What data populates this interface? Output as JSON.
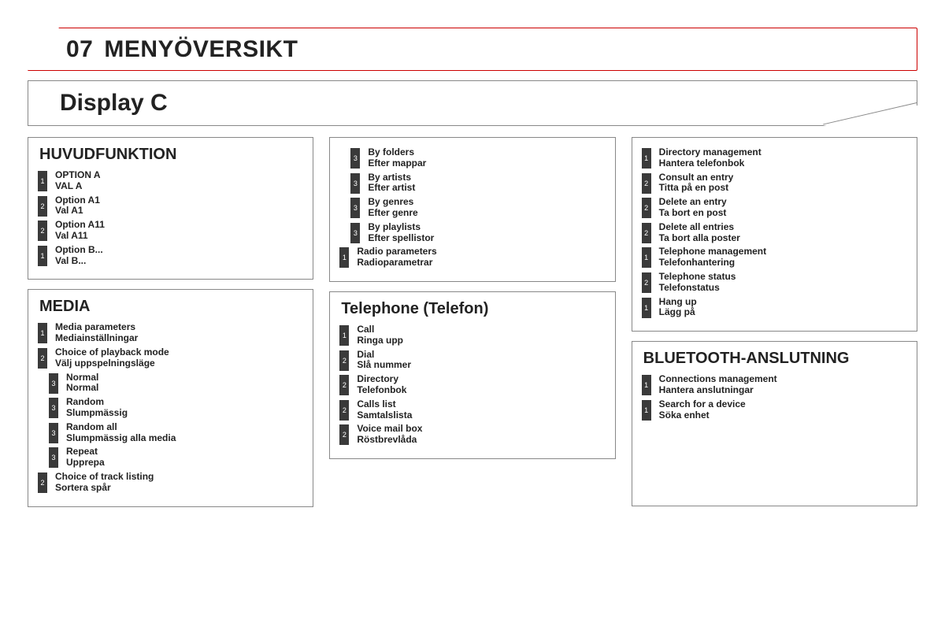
{
  "banner": {
    "num": "07",
    "title": "MENYÖVERSIKT"
  },
  "subtitle": "Display C",
  "colors": {
    "accent": "#c00020",
    "border": "#888888",
    "numbox": "#3a3a3a"
  },
  "columns": [
    {
      "panels": [
        {
          "title": "HUVUDFUNKTION",
          "items": [
            {
              "n": "1",
              "indent": 0,
              "l1": "OPTION A",
              "l2": "VAL A"
            },
            {
              "n": "2",
              "indent": 0,
              "l1": "Option A1",
              "l2": "Val A1"
            },
            {
              "n": "2",
              "indent": 0,
              "l1": "Option A11",
              "l2": "Val A11"
            },
            {
              "n": "1",
              "indent": 0,
              "l1": "Option B...",
              "l2": "Val B..."
            }
          ]
        },
        {
          "title": "MEDIA",
          "items": [
            {
              "n": "1",
              "indent": 0,
              "l1": "Media parameters",
              "l2": "Mediainställningar"
            },
            {
              "n": "2",
              "indent": 0,
              "l1": "Choice of playback mode",
              "l2": "Välj uppspelningsläge"
            },
            {
              "n": "3",
              "indent": 1,
              "l1": "Normal",
              "l2": "Normal"
            },
            {
              "n": "3",
              "indent": 1,
              "l1": "Random",
              "l2": "Slumpmässig"
            },
            {
              "n": "3",
              "indent": 1,
              "l1": "Random all",
              "l2": "Slumpmässig alla media"
            },
            {
              "n": "3",
              "indent": 1,
              "l1": "Repeat",
              "l2": "Upprepa"
            },
            {
              "n": "2",
              "indent": 0,
              "l1": "Choice of track listing",
              "l2": "Sortera spår"
            }
          ]
        }
      ]
    },
    {
      "panels": [
        {
          "title": "",
          "items": [
            {
              "n": "3",
              "indent": 1,
              "l1": "By folders",
              "l2": "Efter mappar"
            },
            {
              "n": "3",
              "indent": 1,
              "l1": "By artists",
              "l2": "Efter artist"
            },
            {
              "n": "3",
              "indent": 1,
              "l1": "By genres",
              "l2": "Efter genre"
            },
            {
              "n": "3",
              "indent": 1,
              "l1": "By playlists",
              "l2": "Efter spellistor"
            },
            {
              "n": "1",
              "indent": 0,
              "l1": "Radio parameters",
              "l2": "Radioparametrar"
            }
          ]
        },
        {
          "title": "Telephone (Telefon)",
          "items": [
            {
              "n": "1",
              "indent": 0,
              "l1": "Call",
              "l2": "Ringa upp"
            },
            {
              "n": "2",
              "indent": 0,
              "l1": "Dial",
              "l2": "Slå nummer"
            },
            {
              "n": "2",
              "indent": 0,
              "l1": "Directory",
              "l2": "Telefonbok"
            },
            {
              "n": "2",
              "indent": 0,
              "l1": "Calls list",
              "l2": "Samtalslista"
            },
            {
              "n": "2",
              "indent": 0,
              "l1": "Voice mail box",
              "l2": "Röstbrevlåda"
            }
          ]
        }
      ]
    },
    {
      "panels": [
        {
          "title": "",
          "items": [
            {
              "n": "1",
              "indent": 0,
              "l1": "Directory management",
              "l2": "Hantera telefonbok"
            },
            {
              "n": "2",
              "indent": 0,
              "l1": "Consult an entry",
              "l2": "Titta på en post"
            },
            {
              "n": "2",
              "indent": 0,
              "l1": "Delete an entry",
              "l2": "Ta bort en post"
            },
            {
              "n": "2",
              "indent": 0,
              "l1": "Delete all entries",
              "l2": "Ta bort alla poster"
            },
            {
              "n": "1",
              "indent": 0,
              "l1": "Telephone management",
              "l2": "Telefonhantering"
            },
            {
              "n": "2",
              "indent": 0,
              "l1": "Telephone status",
              "l2": "Telefonstatus"
            },
            {
              "n": "1",
              "indent": 0,
              "l1": "Hang up",
              "l2": "Lägg på"
            }
          ]
        },
        {
          "title": "BLUETOOTH-ANSLUTNING",
          "items": [
            {
              "n": "1",
              "indent": 0,
              "l1": "Connections management",
              "l2": "Hantera anslutningar"
            },
            {
              "n": "1",
              "indent": 0,
              "l1": "Search for a device",
              "l2": "Söka enhet"
            }
          ],
          "min_height": 210
        }
      ]
    }
  ]
}
